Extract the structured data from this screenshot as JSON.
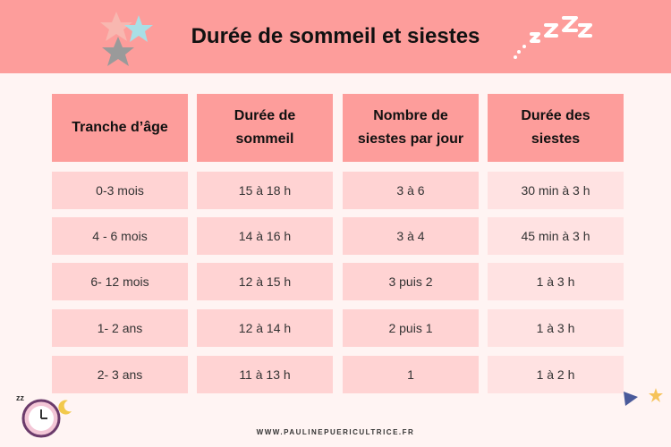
{
  "header": {
    "title": "Durée de sommeil et siestes"
  },
  "table": {
    "columns": [
      "Tranche d’âge",
      "Durée de sommeil",
      "Nombre de siestes par jour",
      "Durée des siestes"
    ],
    "rows": [
      [
        "0-3 mois",
        "15 à 18 h",
        "3 à 6",
        "30 min à 3 h"
      ],
      [
        "4 - 6 mois",
        "14 à 16 h",
        "3 à 4",
        "45 min à 3 h"
      ],
      [
        "6- 12 mois",
        "12 à 15 h",
        "3 puis 2",
        "1 à 3 h"
      ],
      [
        "1- 2 ans",
        "12 à 14 h",
        "2 puis 1",
        "1 à 3 h"
      ],
      [
        "2- 3 ans",
        "11 à 13 h",
        "1",
        "1 à 2 h"
      ]
    ]
  },
  "footer": {
    "url": "WWW.PAULINEPUERICULTRICE.FR"
  }
}
